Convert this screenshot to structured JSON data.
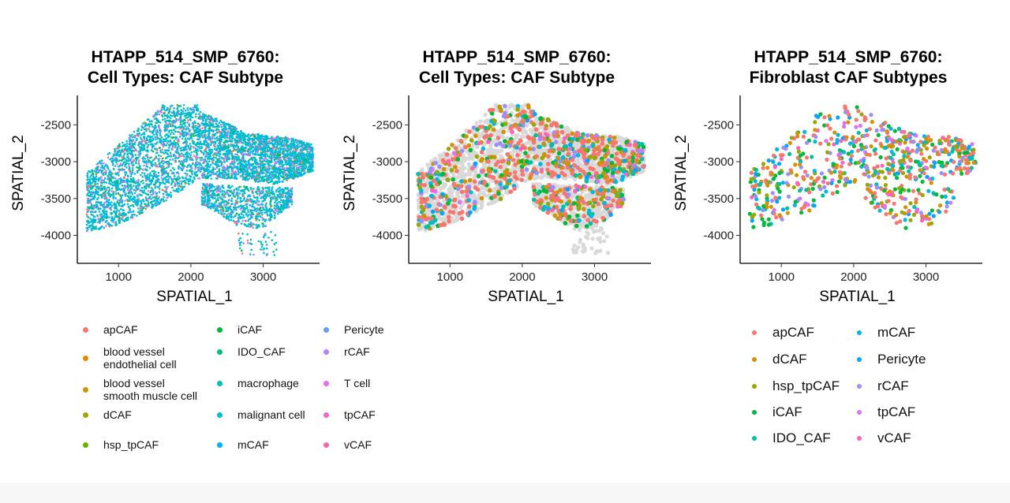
{
  "chart_data": [
    {
      "type": "scatter",
      "title_line1": "HTAPP_514_SMP_6760:",
      "title_line2": "Cell Types: CAF Subtype",
      "xlabel": "SPATIAL_1",
      "ylabel": "SPATIAL_2",
      "xlim": [
        430,
        3780
      ],
      "ylim": [
        -4380,
        -2100
      ],
      "xticks": [
        1000,
        2000,
        3000
      ],
      "yticks": [
        -2500,
        -3000,
        -3500,
        -4000
      ],
      "xtick_labels": [
        "1000",
        "2000",
        "3000"
      ],
      "ytick_labels": [
        "-2500",
        "-3000",
        "-3500",
        "-4000"
      ],
      "grid": false,
      "legend_position": "bottom",
      "legend_ref": "legend1",
      "approx_points": 5600
    },
    {
      "type": "scatter",
      "title_line1": "HTAPP_514_SMP_6760:",
      "title_line2": "Cell Types: CAF Subtype",
      "xlabel": "SPATIAL_1",
      "ylabel": "SPATIAL_2",
      "xlim": [
        430,
        3780
      ],
      "ylim": [
        -4380,
        -2100
      ],
      "xticks": [
        1000,
        2000,
        3000
      ],
      "yticks": [
        -2500,
        -3000,
        -3500,
        -4000
      ],
      "xtick_labels": [
        "1000",
        "2000",
        "3000"
      ],
      "ytick_labels": [
        "-2500",
        "-3000",
        "-3500",
        "-4000"
      ],
      "grid": false,
      "background_cells_color": "#d9d9d9",
      "approx_points": 900
    },
    {
      "type": "scatter",
      "title_line1": "HTAPP_514_SMP_6760:",
      "title_line2": "Fibroblast CAF Subtypes",
      "xlabel": "SPATIAL_1",
      "ylabel": "SPATIAL_2",
      "xlim": [
        430,
        3780
      ],
      "ylim": [
        -4380,
        -2100
      ],
      "xticks": [
        1000,
        2000,
        3000
      ],
      "yticks": [
        -2500,
        -3000,
        -3500,
        -4000
      ],
      "xtick_labels": [
        "1000",
        "2000",
        "3000"
      ],
      "ytick_labels": [
        "-2500",
        "-3000",
        "-3500",
        "-4000"
      ],
      "grid": false,
      "legend_position": "bottom",
      "legend_ref": "legend2",
      "approx_points": 700
    }
  ],
  "legend1": [
    {
      "label": "apCAF",
      "color": "#F8766D"
    },
    {
      "label": "blood vessel\nendothelial cell",
      "color": "#E58700"
    },
    {
      "label": "blood vessel\nsmooth muscle cell",
      "color": "#C99800"
    },
    {
      "label": "dCAF",
      "color": "#A3A500"
    },
    {
      "label": "hsp_tpCAF",
      "color": "#6BB100"
    },
    {
      "label": "iCAF",
      "color": "#00BA38"
    },
    {
      "label": "IDO_CAF",
      "color": "#00BF7D"
    },
    {
      "label": "macrophage",
      "color": "#00C0AF"
    },
    {
      "label": "malignant cell",
      "color": "#00BCD8"
    },
    {
      "label": "mCAF",
      "color": "#00B0F6"
    },
    {
      "label": "Pericyte",
      "color": "#619CFF"
    },
    {
      "label": "rCAF",
      "color": "#B983FF"
    },
    {
      "label": "T cell",
      "color": "#E76BF3"
    },
    {
      "label": "tpCAF",
      "color": "#FD61D1"
    },
    {
      "label": "vCAF",
      "color": "#FF67A4"
    }
  ],
  "legend2": [
    {
      "label": "apCAF",
      "color": "#F8766D"
    },
    {
      "label": "dCAF",
      "color": "#D39200"
    },
    {
      "label": "hsp_tpCAF",
      "color": "#93AA00"
    },
    {
      "label": "iCAF",
      "color": "#00BA38"
    },
    {
      "label": "IDO_CAF",
      "color": "#00C19F"
    },
    {
      "label": "mCAF",
      "color": "#00B9E3"
    },
    {
      "label": "Pericyte",
      "color": "#00A5FF"
    },
    {
      "label": "rCAF",
      "color": "#9C8DFF"
    },
    {
      "label": "tpCAF",
      "color": "#DB72FB"
    },
    {
      "label": "vCAF",
      "color": "#FF61C3"
    }
  ]
}
